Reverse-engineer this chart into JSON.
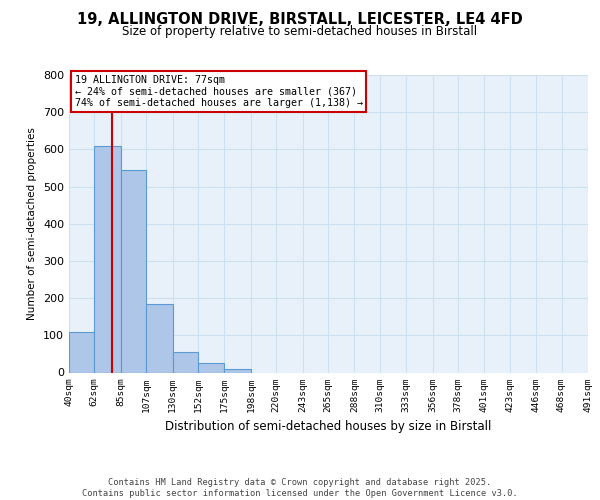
{
  "title1": "19, ALLINGTON DRIVE, BIRSTALL, LEICESTER, LE4 4FD",
  "title2": "Size of property relative to semi-detached houses in Birstall",
  "xlabel": "Distribution of semi-detached houses by size in Birstall",
  "ylabel": "Number of semi-detached properties",
  "bin_labels": [
    "40sqm",
    "62sqm",
    "85sqm",
    "107sqm",
    "130sqm",
    "152sqm",
    "175sqm",
    "198sqm",
    "220sqm",
    "243sqm",
    "265sqm",
    "288sqm",
    "310sqm",
    "333sqm",
    "356sqm",
    "378sqm",
    "401sqm",
    "423sqm",
    "446sqm",
    "468sqm",
    "491sqm"
  ],
  "bin_edges": [
    40,
    62,
    85,
    107,
    130,
    152,
    175,
    198,
    220,
    243,
    265,
    288,
    310,
    333,
    356,
    378,
    401,
    423,
    446,
    468,
    491
  ],
  "bar_heights": [
    110,
    610,
    545,
    185,
    55,
    25,
    10,
    0,
    0,
    0,
    0,
    0,
    0,
    0,
    0,
    0,
    0,
    0,
    0,
    0
  ],
  "bar_color": "#aec6e8",
  "bar_edge_color": "#5b9bd5",
  "property_size": 77,
  "pct_smaller": 24,
  "pct_larger": 74,
  "count_smaller": 367,
  "count_larger": 1138,
  "vline_color": "#cc0000",
  "annotation_box_color": "#cc0000",
  "ylim": [
    0,
    800
  ],
  "yticks": [
    0,
    100,
    200,
    300,
    400,
    500,
    600,
    700,
    800
  ],
  "grid_color": "#cde0f0",
  "footer1": "Contains HM Land Registry data © Crown copyright and database right 2025.",
  "footer2": "Contains public sector information licensed under the Open Government Licence v3.0.",
  "bg_color": "#e8f1fa"
}
